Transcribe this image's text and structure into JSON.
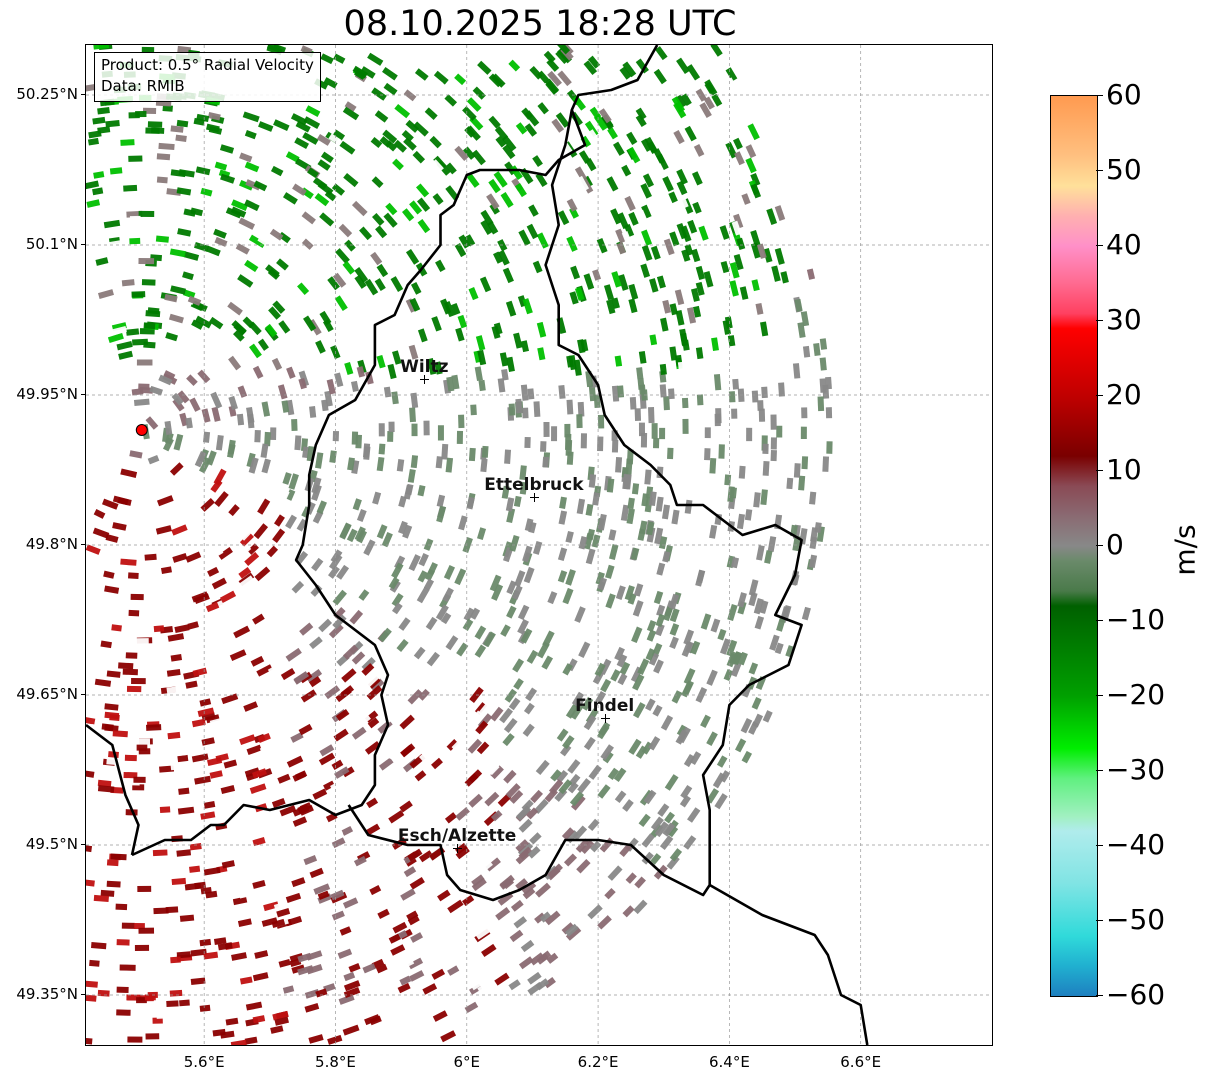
{
  "title": "08.10.2025 18:28 UTC",
  "info": {
    "product": "Product: 0.5° Radial Velocity",
    "data": "Data: RMIB"
  },
  "map": {
    "lon_range": [
      5.42,
      6.8
    ],
    "lat_range": [
      49.3,
      50.3
    ],
    "radar_site": {
      "lon": 5.505,
      "lat": 49.915,
      "color": "#ff0000"
    },
    "lat_ticks": [
      {
        "value": 50.25,
        "label": "50.25°N"
      },
      {
        "value": 50.1,
        "label": "50.1°N"
      },
      {
        "value": 49.95,
        "label": "49.95°N"
      },
      {
        "value": 49.8,
        "label": "49.8°N"
      },
      {
        "value": 49.65,
        "label": "49.65°N"
      },
      {
        "value": 49.5,
        "label": "49.5°N"
      },
      {
        "value": 49.35,
        "label": "49.35°N"
      }
    ],
    "lon_ticks": [
      {
        "value": 5.6,
        "label": "5.6°E"
      },
      {
        "value": 5.8,
        "label": "5.8°E"
      },
      {
        "value": 6.0,
        "label": "6°E"
      },
      {
        "value": 6.2,
        "label": "6.2°E"
      },
      {
        "value": 6.4,
        "label": "6.4°E"
      },
      {
        "value": 6.6,
        "label": "6.6°E"
      }
    ],
    "cities": [
      {
        "name": "Wiltz",
        "lon": 5.935,
        "lat": 49.966
      },
      {
        "name": "Ettelbruck",
        "lon": 6.102,
        "lat": 49.848
      },
      {
        "name": "Findel",
        "lon": 6.21,
        "lat": 49.627
      },
      {
        "name": "Esch/Alzette",
        "lon": 5.985,
        "lat": 49.497
      }
    ],
    "border": [
      [
        6.29,
        50.3
      ],
      [
        6.26,
        50.265
      ],
      [
        6.22,
        50.255
      ],
      [
        6.17,
        50.25
      ],
      [
        6.16,
        50.235
      ],
      [
        6.18,
        50.2
      ],
      [
        6.14,
        50.185
      ],
      [
        6.12,
        50.17
      ],
      [
        6.08,
        50.175
      ],
      [
        6.02,
        50.175
      ],
      [
        6.0,
        50.17
      ],
      [
        5.98,
        50.14
      ],
      [
        5.96,
        50.13
      ],
      [
        5.96,
        50.1
      ],
      [
        5.93,
        50.075
      ],
      [
        5.91,
        50.06
      ],
      [
        5.89,
        50.03
      ],
      [
        5.86,
        50.02
      ],
      [
        5.86,
        49.98
      ],
      [
        5.83,
        49.945
      ],
      [
        5.79,
        49.93
      ],
      [
        5.77,
        49.9
      ],
      [
        5.76,
        49.87
      ],
      [
        5.76,
        49.84
      ],
      [
        5.75,
        49.8
      ],
      [
        5.74,
        49.785
      ],
      [
        5.77,
        49.76
      ],
      [
        5.8,
        49.73
      ],
      [
        5.82,
        49.72
      ],
      [
        5.86,
        49.7
      ],
      [
        5.88,
        49.67
      ],
      [
        5.87,
        49.65
      ],
      [
        5.88,
        49.62
      ],
      [
        5.86,
        49.59
      ],
      [
        5.86,
        49.56
      ],
      [
        5.84,
        49.54
      ],
      [
        5.8,
        49.53
      ],
      [
        5.76,
        49.545
      ],
      [
        5.73,
        49.54
      ],
      [
        5.7,
        49.535
      ],
      [
        5.66,
        49.54
      ],
      [
        5.63,
        49.52
      ],
      [
        5.61,
        49.52
      ],
      [
        5.58,
        49.505
      ],
      [
        5.54,
        49.505
      ],
      [
        5.49,
        49.49
      ]
    ],
    "border_east": [
      [
        6.16,
        50.235
      ],
      [
        6.15,
        50.2
      ],
      [
        6.13,
        50.16
      ],
      [
        6.14,
        50.12
      ],
      [
        6.12,
        50.08
      ],
      [
        6.14,
        50.04
      ],
      [
        6.14,
        50.0
      ],
      [
        6.17,
        49.99
      ],
      [
        6.2,
        49.96
      ],
      [
        6.21,
        49.93
      ],
      [
        6.24,
        49.9
      ],
      [
        6.28,
        49.88
      ],
      [
        6.31,
        49.86
      ],
      [
        6.32,
        49.84
      ],
      [
        6.36,
        49.84
      ],
      [
        6.42,
        49.81
      ],
      [
        6.47,
        49.82
      ],
      [
        6.51,
        49.805
      ],
      [
        6.5,
        49.77
      ],
      [
        6.47,
        49.73
      ],
      [
        6.51,
        49.72
      ],
      [
        6.49,
        49.68
      ],
      [
        6.43,
        49.66
      ],
      [
        6.4,
        49.64
      ],
      [
        6.39,
        49.6
      ],
      [
        6.36,
        49.57
      ],
      [
        6.37,
        49.535
      ],
      [
        6.37,
        49.46
      ],
      [
        6.36,
        49.45
      ],
      [
        6.3,
        49.47
      ],
      [
        6.25,
        49.5
      ],
      [
        6.2,
        49.505
      ],
      [
        6.15,
        49.505
      ],
      [
        6.12,
        49.47
      ],
      [
        6.08,
        49.455
      ],
      [
        6.04,
        49.445
      ],
      [
        5.99,
        49.455
      ],
      [
        5.97,
        49.47
      ],
      [
        5.96,
        49.5
      ],
      [
        5.91,
        49.5
      ],
      [
        5.85,
        49.51
      ],
      [
        5.82,
        49.54
      ]
    ],
    "border_france": [
      [
        6.37,
        49.46
      ],
      [
        6.45,
        49.43
      ],
      [
        6.53,
        49.41
      ],
      [
        6.55,
        49.39
      ],
      [
        6.57,
        49.35
      ],
      [
        6.6,
        49.34
      ],
      [
        6.61,
        49.3
      ]
    ],
    "border_west_lower": [
      [
        5.42,
        49.62
      ],
      [
        5.46,
        49.6
      ],
      [
        5.48,
        49.55
      ],
      [
        5.5,
        49.52
      ],
      [
        5.49,
        49.49
      ]
    ]
  },
  "colorbar": {
    "min": -60,
    "max": 60,
    "unit": "m/s",
    "ticks": [
      {
        "value": 60,
        "label": "60"
      },
      {
        "value": 50,
        "label": "50"
      },
      {
        "value": 40,
        "label": "40"
      },
      {
        "value": 30,
        "label": "30"
      },
      {
        "value": 20,
        "label": "20"
      },
      {
        "value": 10,
        "label": "10"
      },
      {
        "value": 0,
        "label": "0"
      },
      {
        "value": -10,
        "label": "−10"
      },
      {
        "value": -20,
        "label": "−20"
      },
      {
        "value": -30,
        "label": "−30"
      },
      {
        "value": -40,
        "label": "−40"
      },
      {
        "value": -50,
        "label": "−50"
      },
      {
        "value": -60,
        "label": "−60"
      }
    ],
    "stops": [
      {
        "value": 60,
        "color": "#ff9a50"
      },
      {
        "value": 52,
        "color": "#ffc080"
      },
      {
        "value": 48,
        "color": "#ffe09a"
      },
      {
        "value": 44,
        "color": "#ffb0b0"
      },
      {
        "value": 40,
        "color": "#ff90c8"
      },
      {
        "value": 35,
        "color": "#ff6a90"
      },
      {
        "value": 31,
        "color": "#ff4060"
      },
      {
        "value": 29,
        "color": "#ff0000"
      },
      {
        "value": 20,
        "color": "#c00000"
      },
      {
        "value": 12,
        "color": "#7a0000"
      },
      {
        "value": 8,
        "color": "#8a4a55"
      },
      {
        "value": 4,
        "color": "#8a6a72"
      },
      {
        "value": 0,
        "color": "#888888"
      },
      {
        "value": -2,
        "color": "#6a8a6a"
      },
      {
        "value": -6,
        "color": "#4a7a4a"
      },
      {
        "value": -8,
        "color": "#006000"
      },
      {
        "value": -20,
        "color": "#00a000"
      },
      {
        "value": -27,
        "color": "#00ee00"
      },
      {
        "value": -31,
        "color": "#60f080"
      },
      {
        "value": -36,
        "color": "#a0f0c0"
      },
      {
        "value": -38,
        "color": "#b0ecec"
      },
      {
        "value": -45,
        "color": "#80e4e4"
      },
      {
        "value": -52,
        "color": "#30dada"
      },
      {
        "value": -56,
        "color": "#20b0d0"
      },
      {
        "value": -60,
        "color": "#1e80c0"
      }
    ]
  }
}
